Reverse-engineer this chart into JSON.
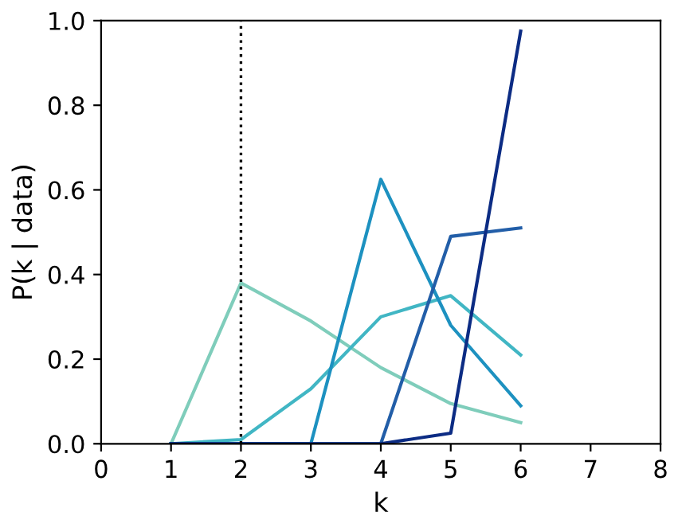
{
  "chart_data": {
    "type": "line",
    "xlabel": "k",
    "ylabel": "P(k | data)",
    "xlim": [
      0,
      8
    ],
    "xticks": [
      0,
      1,
      2,
      3,
      4,
      5,
      6,
      7,
      8
    ],
    "ylim": [
      0,
      1
    ],
    "yticks": [
      {
        "value": 0,
        "label": "0.0"
      },
      0.2,
      0.4,
      0.6,
      0.8,
      {
        "value": 1,
        "label": "1.0"
      }
    ],
    "grid": false,
    "legend": false,
    "series": [
      {
        "color": "#7fcdbb",
        "x": [
          1,
          2,
          3,
          4,
          5,
          6
        ],
        "values": [
          0,
          0.38,
          0.29,
          0.18,
          0.095,
          0.05
        ]
      },
      {
        "color": "#41b6c4",
        "x": [
          1,
          2,
          3,
          4,
          5,
          6
        ],
        "values": [
          0,
          0.01,
          0.13,
          0.3,
          0.35,
          0.21
        ]
      },
      {
        "color": "#1d91c0",
        "x": [
          1,
          2,
          3,
          4,
          5,
          6
        ],
        "values": [
          0,
          0,
          0,
          0.625,
          0.28,
          0.09
        ]
      },
      {
        "color": "#225ea8",
        "x": [
          1,
          2,
          3,
          4,
          5,
          6
        ],
        "values": [
          0,
          0,
          0,
          0,
          0.49,
          0.51
        ]
      },
      {
        "color": "#0c2c84",
        "x": [
          1,
          2,
          3,
          4,
          5,
          6
        ],
        "values": [
          0,
          0,
          0,
          0,
          0.025,
          0.975
        ]
      }
    ],
    "ref_lines": [
      {
        "axis": "x",
        "value": 2,
        "color": "#000000",
        "line_style": "dotted"
      }
    ]
  }
}
